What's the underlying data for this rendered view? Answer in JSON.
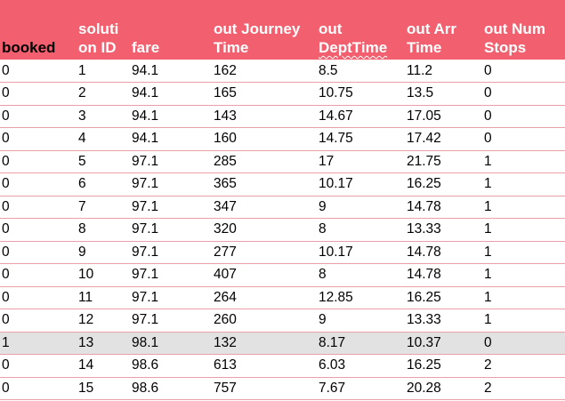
{
  "headers": [
    [
      "booked"
    ],
    [
      "soluti",
      "on ID"
    ],
    [
      "fare"
    ],
    [
      "out Journey",
      "Time"
    ],
    [
      "out",
      "DeptTime"
    ],
    [
      "out Arr",
      "Time"
    ],
    [
      "out Num",
      "Stops"
    ]
  ],
  "rows": [
    [
      "0",
      "1",
      "94.1",
      "162",
      "8.5",
      "11.2",
      "0"
    ],
    [
      "0",
      "2",
      "94.1",
      "165",
      "10.75",
      "13.5",
      "0"
    ],
    [
      "0",
      "3",
      "94.1",
      "143",
      "14.67",
      "17.05",
      "0"
    ],
    [
      "0",
      "4",
      "94.1",
      "160",
      "14.75",
      "17.42",
      "0"
    ],
    [
      "0",
      "5",
      "97.1",
      "285",
      "17",
      "21.75",
      "1"
    ],
    [
      "0",
      "6",
      "97.1",
      "365",
      "10.17",
      "16.25",
      "1"
    ],
    [
      "0",
      "7",
      "97.1",
      "347",
      "9",
      "14.78",
      "1"
    ],
    [
      "0",
      "8",
      "97.1",
      "320",
      "8",
      "13.33",
      "1"
    ],
    [
      "0",
      "9",
      "97.1",
      "277",
      "10.17",
      "14.78",
      "1"
    ],
    [
      "0",
      "10",
      "97.1",
      "407",
      "8",
      "14.78",
      "1"
    ],
    [
      "0",
      "11",
      "97.1",
      "264",
      "12.85",
      "16.25",
      "1"
    ],
    [
      "0",
      "12",
      "97.1",
      "260",
      "9",
      "13.33",
      "1"
    ],
    [
      "1",
      "13",
      "98.1",
      "132",
      "8.17",
      "10.37",
      "0"
    ],
    [
      "0",
      "14",
      "98.6",
      "613",
      "6.03",
      "16.25",
      "2"
    ],
    [
      "0",
      "15",
      "98.6",
      "757",
      "7.67",
      "20.28",
      "2"
    ]
  ],
  "colors": {
    "header_bg": "#f2606f",
    "highlight_row": "#e2e2e2",
    "row_border": "#e9a0a9"
  }
}
